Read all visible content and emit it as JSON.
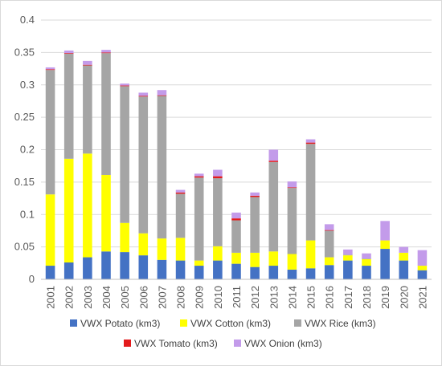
{
  "chart_data": {
    "type": "bar",
    "stacked": true,
    "title": "",
    "xlabel": "",
    "ylabel": "",
    "ylim": [
      0,
      0.4
    ],
    "yticks": [
      "0",
      "0.05",
      "0.1",
      "0.15",
      "0.2",
      "0.25",
      "0.3",
      "0.35",
      "0.4"
    ],
    "grid": "horizontal",
    "legend_position": "bottom",
    "categories": [
      "2001",
      "2002",
      "2003",
      "2004",
      "2005",
      "2006",
      "2007",
      "2008",
      "2009",
      "2010",
      "2011",
      "2012",
      "2013",
      "2014",
      "2015",
      "2016",
      "2017",
      "2018",
      "2019",
      "2020",
      "2021"
    ],
    "series": [
      {
        "name": "VWX Potato (km3)",
        "color": "#4472c4",
        "values": [
          0.021,
          0.026,
          0.034,
          0.043,
          0.042,
          0.037,
          0.03,
          0.029,
          0.021,
          0.029,
          0.024,
          0.019,
          0.021,
          0.015,
          0.017,
          0.022,
          0.029,
          0.021,
          0.047,
          0.029,
          0.014
        ]
      },
      {
        "name": "VWX Cotton (km3)",
        "color": "#ffff00",
        "values": [
          0.11,
          0.16,
          0.16,
          0.118,
          0.045,
          0.034,
          0.033,
          0.035,
          0.008,
          0.022,
          0.017,
          0.022,
          0.022,
          0.024,
          0.043,
          0.012,
          0.008,
          0.01,
          0.013,
          0.012,
          0.007
        ]
      },
      {
        "name": "VWX Rice (km3)",
        "color": "#a5a5a5",
        "values": [
          0.192,
          0.162,
          0.136,
          0.188,
          0.211,
          0.211,
          0.22,
          0.068,
          0.128,
          0.105,
          0.05,
          0.086,
          0.138,
          0.102,
          0.149,
          0.041,
          0.001,
          0.001,
          0.0,
          0.0,
          0.0
        ]
      },
      {
        "name": "VWX Tomato (km3)",
        "color": "#e31a1c",
        "values": [
          0.001,
          0.001,
          0.001,
          0.001,
          0.001,
          0.001,
          0.001,
          0.002,
          0.002,
          0.003,
          0.003,
          0.002,
          0.002,
          0.001,
          0.002,
          0.001,
          0.0,
          0.0,
          0.0,
          0.0,
          0.0
        ]
      },
      {
        "name": "VWX Onion (km3)",
        "color": "#c39bea",
        "values": [
          0.003,
          0.004,
          0.006,
          0.004,
          0.003,
          0.005,
          0.008,
          0.004,
          0.004,
          0.01,
          0.009,
          0.005,
          0.017,
          0.009,
          0.005,
          0.009,
          0.008,
          0.008,
          0.03,
          0.009,
          0.024
        ]
      }
    ]
  }
}
